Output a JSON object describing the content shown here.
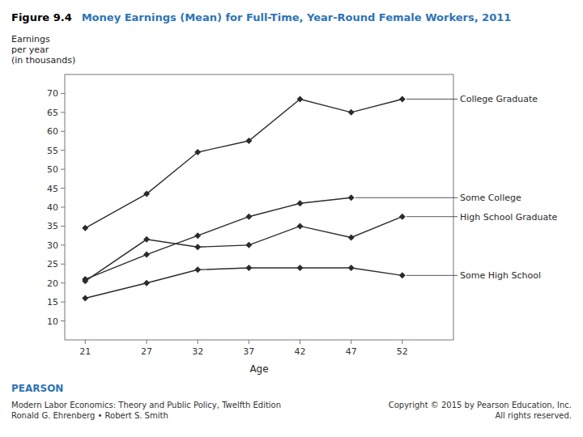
{
  "chart_data": {
    "type": "line",
    "title": "Figure 9.4",
    "subtitle": "Money Earnings (Mean) for Full-Time, Year-Round Female Workers, 2011",
    "x_label": "Age",
    "y_label": [
      "Earnings",
      "per year",
      "(in thousands)"
    ],
    "x": [
      21,
      27,
      32,
      37,
      42,
      47,
      52
    ],
    "series": [
      {
        "name": "College Graduate",
        "values": [
          34.5,
          43.5,
          54.5,
          57.5,
          68.5,
          65.0,
          68.5
        ]
      },
      {
        "name": "Some College",
        "values": [
          21.0,
          27.5,
          32.5,
          37.5,
          41.0,
          42.5,
          null
        ]
      },
      {
        "name": "High School Graduate",
        "values": [
          20.5,
          31.5,
          29.5,
          30.0,
          35.0,
          32.0,
          37.5
        ]
      },
      {
        "name": "Some High School",
        "values": [
          16.0,
          20.0,
          23.5,
          24.0,
          24.0,
          24.0,
          22.0
        ]
      }
    ],
    "color": "#2b2b2b",
    "marker": "diamond",
    "xlim": [
      19,
      57
    ],
    "ylim": [
      5,
      75
    ],
    "xticks": [
      21,
      27,
      32,
      37,
      42,
      47,
      52
    ],
    "yticks": [
      10,
      15,
      20,
      25,
      30,
      35,
      40,
      45,
      50,
      55,
      60,
      65,
      70
    ],
    "grid": false,
    "annotations": [
      "PEARSON",
      "Modern Labor Economics: Theory and Public Policy, Twelfth Edition\nRonald G. Ehrenberg • Robert S. Smith",
      "Copyright © 2015 by Pearson Education, Inc.\nAll rights reserved."
    ]
  }
}
